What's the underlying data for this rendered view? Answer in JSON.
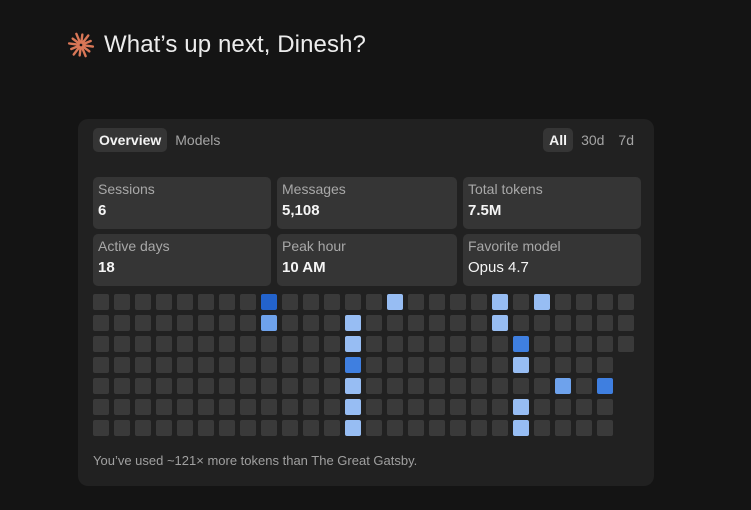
{
  "header": {
    "greeting": "What’s up next, Dinesh?",
    "icon": "starburst-icon",
    "icon_color": "#d97757"
  },
  "tabs": [
    {
      "label": "Overview",
      "active": true
    },
    {
      "label": "Models",
      "active": false
    }
  ],
  "ranges": [
    {
      "label": "All",
      "active": true
    },
    {
      "label": "30d",
      "active": false
    },
    {
      "label": "7d",
      "active": false
    }
  ],
  "stats": [
    {
      "label": "Sessions",
      "value": "6"
    },
    {
      "label": "Messages",
      "value": "5,108"
    },
    {
      "label": "Total tokens",
      "value": "7.5M"
    },
    {
      "label": "Active days",
      "value": "18"
    },
    {
      "label": "Peak hour",
      "value": "10 AM"
    },
    {
      "label": "Favorite model",
      "value": "Opus 4.7"
    }
  ],
  "activity": {
    "columns": 26,
    "rows": 7,
    "last_column_days": 3,
    "levels": {
      "8,0": 4,
      "8,1": 2,
      "12,1": 1,
      "12,2": 1,
      "12,3": 3,
      "12,4": 1,
      "12,5": 1,
      "12,6": 1,
      "14,0": 1,
      "19,0": 1,
      "19,1": 1,
      "20,2": 3,
      "20,3": 1,
      "20,5": 1,
      "20,6": 1,
      "21,0": 1,
      "22,4": 2,
      "24,4": 3
    },
    "colors": {
      "empty": "#3a3a3a",
      "l1": "#97bdf3",
      "l2": "#6ea2ec",
      "l3": "#3f7fe0",
      "l4": "#2363cc"
    }
  },
  "footer": "You’ve used ~121× more tokens than The Great Gatsby."
}
